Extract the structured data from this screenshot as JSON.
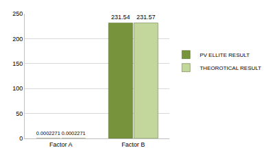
{
  "chart_data": {
    "type": "bar",
    "categories": [
      "Factor A",
      "Factor B"
    ],
    "series": [
      {
        "name": "PV ELLITE RESULT",
        "color": "#77933c",
        "values": [
          0.0002271,
          231.54
        ]
      },
      {
        "name": "THEOROTICAL RESULT",
        "color": "#c3d69b",
        "values": [
          0.0002271,
          231.57
        ]
      }
    ],
    "ylim": [
      0,
      250
    ],
    "yticks": [
      0,
      50,
      100,
      150,
      200,
      250
    ],
    "grid": true,
    "legend": "right",
    "data_labels": true
  }
}
